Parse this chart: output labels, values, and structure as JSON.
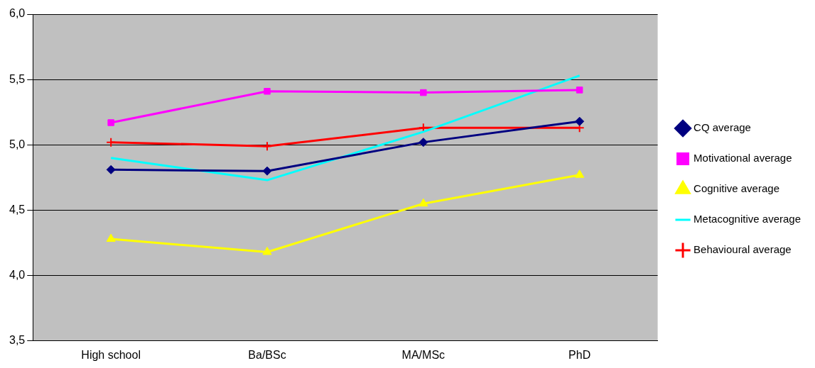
{
  "chart_data": {
    "type": "line",
    "categories": [
      "High school",
      "Ba/BSc",
      "MA/MSc",
      "PhD"
    ],
    "series": [
      {
        "name": "CQ average",
        "color": "#000080",
        "marker": "diamond",
        "values": [
          4.81,
          4.8,
          5.02,
          5.18
        ]
      },
      {
        "name": "Motivational average",
        "color": "#ff00ff",
        "marker": "square",
        "values": [
          5.17,
          5.41,
          5.4,
          5.42
        ]
      },
      {
        "name": "Cognitive average",
        "color": "#ffff00",
        "marker": "triangle",
        "values": [
          4.28,
          4.18,
          4.55,
          4.77
        ]
      },
      {
        "name": "Metacognitive average",
        "color": "#00ffff",
        "marker": "none",
        "values": [
          4.9,
          4.73,
          5.1,
          5.53
        ]
      },
      {
        "name": "Behavioural average",
        "color": "#ff0000",
        "marker": "cross",
        "values": [
          5.02,
          4.99,
          5.13,
          5.13
        ]
      }
    ],
    "ylim": [
      3.5,
      6.0
    ],
    "yticks": [
      {
        "value": 3.5,
        "label": "3,5"
      },
      {
        "value": 4.0,
        "label": "4,0"
      },
      {
        "value": 4.5,
        "label": "4,5"
      },
      {
        "value": 5.0,
        "label": "5,0"
      },
      {
        "value": 5.5,
        "label": "5,5"
      },
      {
        "value": 6.0,
        "label": "6,0"
      }
    ],
    "grid": "y",
    "legend": "right"
  }
}
